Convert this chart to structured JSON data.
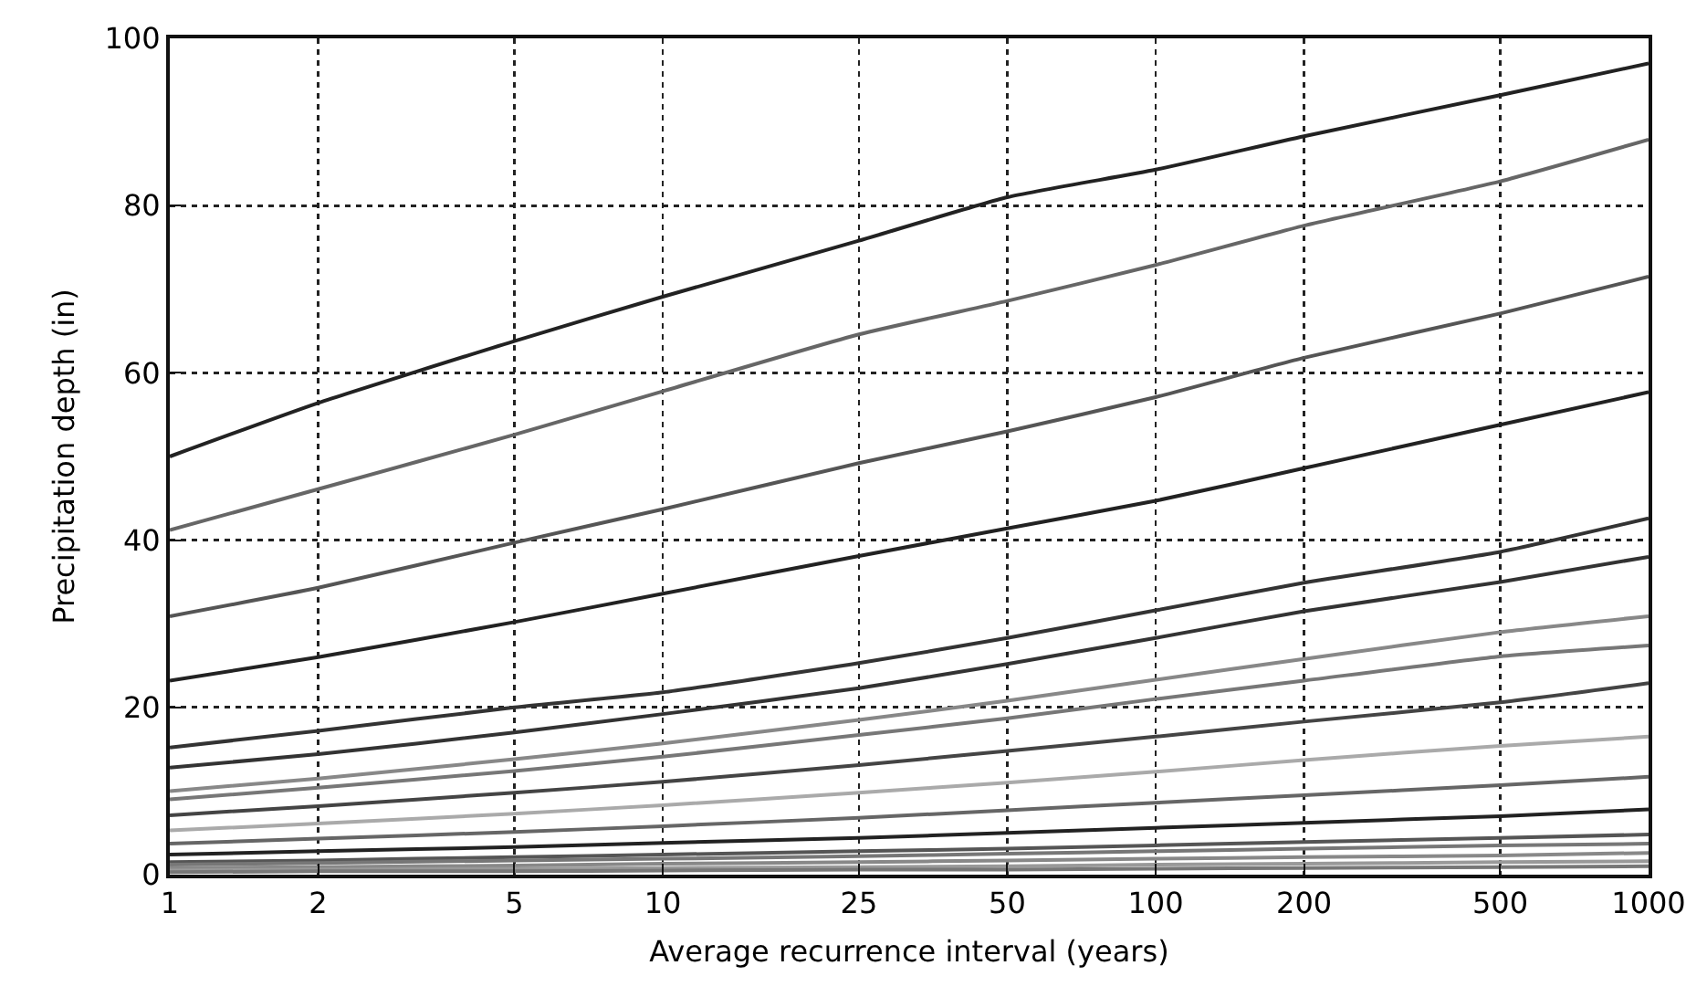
{
  "chart_data": {
    "type": "line",
    "xlabel": "Average recurrence interval (years)",
    "ylabel": "Precipitation depth (in)",
    "x": [
      1,
      2,
      5,
      10,
      25,
      50,
      100,
      200,
      500,
      1000
    ],
    "xlim": [
      1,
      1000
    ],
    "xticks": [
      1,
      2,
      5,
      10,
      25,
      50,
      100,
      200,
      500,
      1000
    ],
    "ylim": [
      0,
      100
    ],
    "yticks": [
      0,
      20,
      40,
      60,
      80,
      100
    ],
    "log": "x",
    "grid": true,
    "marker": "none",
    "line_style": "solid",
    "series": [
      {
        "color": "#222222",
        "values": [
          50,
          56.4,
          63.8,
          69.1,
          75.8,
          81,
          84.3,
          88.3,
          93.2,
          97
        ]
      },
      {
        "color": "#666666",
        "values": [
          41.2,
          46.1,
          52.6,
          57.8,
          64.6,
          68.6,
          72.9,
          77.6,
          82.9,
          87.9
        ]
      },
      {
        "color": "#555555",
        "values": [
          30.9,
          34.3,
          39.7,
          43.7,
          49.2,
          53,
          57.1,
          61.8,
          67.1,
          71.5
        ]
      },
      {
        "color": "#222222",
        "values": [
          23.2,
          26,
          30.2,
          33.6,
          38.1,
          41.4,
          44.7,
          48.6,
          53.8,
          57.7
        ]
      },
      {
        "color": "#333333",
        "values": [
          15.2,
          17.2,
          20,
          21.8,
          25.3,
          28.3,
          31.6,
          34.9,
          38.6,
          42.6
        ]
      },
      {
        "color": "#333333",
        "values": [
          12.8,
          14.4,
          17,
          19.2,
          22.3,
          25.2,
          28.3,
          31.5,
          35,
          38
        ]
      },
      {
        "color": "#888888",
        "values": [
          10,
          11.5,
          13.8,
          15.7,
          18.5,
          20.8,
          23.3,
          25.8,
          29,
          30.9
        ]
      },
      {
        "color": "#777777",
        "values": [
          9,
          10.4,
          12.4,
          14.1,
          16.7,
          18.7,
          21,
          23.2,
          26.1,
          27.4
        ]
      },
      {
        "color": "#444444",
        "values": [
          7.1,
          8.2,
          9.8,
          11.1,
          13.1,
          14.8,
          16.5,
          18.3,
          20.6,
          22.9
        ]
      },
      {
        "color": "#aaaaaa",
        "values": [
          5.3,
          6.1,
          7.3,
          8.3,
          9.8,
          11,
          12.3,
          13.7,
          15.4,
          16.5
        ]
      },
      {
        "color": "#666666",
        "values": [
          3.7,
          4.3,
          5.1,
          5.8,
          6.8,
          7.7,
          8.6,
          9.5,
          10.7,
          11.7
        ]
      },
      {
        "color": "#222222",
        "values": [
          2.4,
          2.8,
          3.3,
          3.8,
          4.4,
          5,
          5.6,
          6.2,
          7,
          7.8
        ]
      },
      {
        "color": "#555555",
        "values": [
          1.5,
          1.7,
          2.1,
          2.4,
          2.8,
          3.1,
          3.5,
          3.9,
          4.4,
          4.8
        ]
      },
      {
        "color": "#777777",
        "values": [
          1.2,
          1.4,
          1.7,
          1.9,
          2.2,
          2.5,
          2.8,
          3.1,
          3.5,
          3.7
        ]
      },
      {
        "color": "#888888",
        "values": [
          0.8,
          0.9,
          1.1,
          1.3,
          1.5,
          1.7,
          1.9,
          2.1,
          2.3,
          2.6
        ]
      },
      {
        "color": "#999999",
        "values": [
          0.5,
          0.6,
          0.7,
          0.8,
          0.9,
          1,
          1.2,
          1.3,
          1.5,
          1.6
        ]
      },
      {
        "color": "#777777",
        "values": [
          0.3,
          0.4,
          0.4,
          0.5,
          0.6,
          0.6,
          0.7,
          0.8,
          0.9,
          1
        ]
      }
    ]
  }
}
